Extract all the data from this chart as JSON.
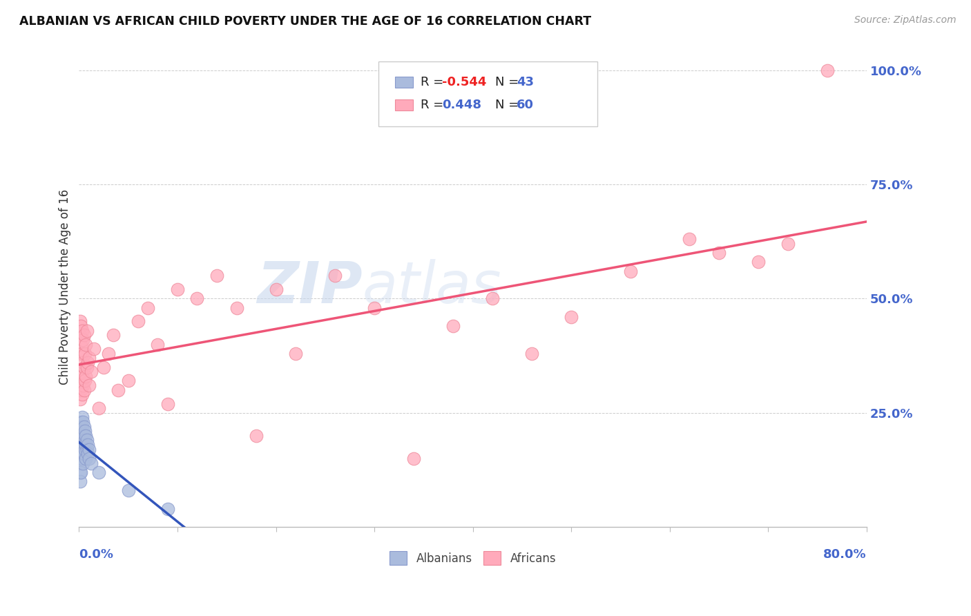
{
  "title": "ALBANIAN VS AFRICAN CHILD POVERTY UNDER THE AGE OF 16 CORRELATION CHART",
  "source": "Source: ZipAtlas.com",
  "ylabel": "Child Poverty Under the Age of 16",
  "watermark_zip": "ZIP",
  "watermark_atlas": "atlas",
  "legend_label_albanians": "Albanians",
  "legend_label_africans": "Africans",
  "albanian_color": "#aabbdd",
  "african_color": "#ffaabb",
  "albanian_edge_color": "#8899cc",
  "african_edge_color": "#ee8899",
  "albanian_line_color": "#3355bb",
  "african_line_color": "#ee5577",
  "R_albanian": -0.544,
  "N_albanian": 43,
  "R_african": 0.448,
  "N_african": 60,
  "albanian_x": [
    0.001,
    0.001,
    0.001,
    0.001,
    0.001,
    0.001,
    0.001,
    0.002,
    0.002,
    0.002,
    0.002,
    0.002,
    0.002,
    0.003,
    0.003,
    0.003,
    0.003,
    0.003,
    0.004,
    0.004,
    0.004,
    0.004,
    0.004,
    0.005,
    0.005,
    0.005,
    0.005,
    0.006,
    0.006,
    0.006,
    0.007,
    0.007,
    0.007,
    0.008,
    0.008,
    0.009,
    0.009,
    0.01,
    0.01,
    0.012,
    0.02,
    0.05,
    0.09
  ],
  "albanian_y": [
    0.22,
    0.2,
    0.18,
    0.16,
    0.14,
    0.12,
    0.1,
    0.23,
    0.21,
    0.19,
    0.17,
    0.15,
    0.12,
    0.24,
    0.22,
    0.2,
    0.18,
    0.15,
    0.23,
    0.21,
    0.19,
    0.17,
    0.14,
    0.22,
    0.2,
    0.18,
    0.16,
    0.21,
    0.19,
    0.17,
    0.2,
    0.18,
    0.15,
    0.19,
    0.17,
    0.18,
    0.16,
    0.17,
    0.15,
    0.14,
    0.12,
    0.08,
    0.04
  ],
  "african_x": [
    0.001,
    0.001,
    0.001,
    0.001,
    0.001,
    0.002,
    0.002,
    0.002,
    0.002,
    0.003,
    0.003,
    0.003,
    0.003,
    0.004,
    0.004,
    0.004,
    0.005,
    0.005,
    0.005,
    0.006,
    0.006,
    0.007,
    0.007,
    0.008,
    0.008,
    0.009,
    0.01,
    0.01,
    0.012,
    0.015,
    0.02,
    0.025,
    0.03,
    0.035,
    0.04,
    0.05,
    0.06,
    0.07,
    0.08,
    0.09,
    0.1,
    0.12,
    0.14,
    0.16,
    0.18,
    0.2,
    0.22,
    0.26,
    0.3,
    0.34,
    0.38,
    0.42,
    0.46,
    0.5,
    0.56,
    0.62,
    0.65,
    0.69,
    0.72,
    0.76
  ],
  "african_y": [
    0.28,
    0.32,
    0.38,
    0.42,
    0.45,
    0.3,
    0.34,
    0.4,
    0.44,
    0.29,
    0.33,
    0.38,
    0.43,
    0.31,
    0.36,
    0.41,
    0.3,
    0.35,
    0.42,
    0.32,
    0.38,
    0.33,
    0.4,
    0.35,
    0.43,
    0.36,
    0.31,
    0.37,
    0.34,
    0.39,
    0.26,
    0.35,
    0.38,
    0.42,
    0.3,
    0.32,
    0.45,
    0.48,
    0.4,
    0.27,
    0.52,
    0.5,
    0.55,
    0.48,
    0.2,
    0.52,
    0.38,
    0.55,
    0.48,
    0.15,
    0.44,
    0.5,
    0.38,
    0.46,
    0.56,
    0.63,
    0.6,
    0.58,
    0.62,
    1.0
  ],
  "xlim": [
    0.0,
    0.8
  ],
  "ylim": [
    0.0,
    1.05
  ],
  "yticks": [
    0.0,
    0.25,
    0.5,
    0.75,
    1.0
  ],
  "ytick_labels": [
    "",
    "25.0%",
    "50.0%",
    "75.0%",
    "100.0%"
  ],
  "xtick_labels_show": [
    "0.0%",
    "80.0%"
  ],
  "background_color": "#ffffff",
  "grid_color": "#cccccc",
  "title_color": "#111111",
  "source_color": "#999999",
  "tick_color": "#4466cc",
  "ylabel_color": "#333333"
}
